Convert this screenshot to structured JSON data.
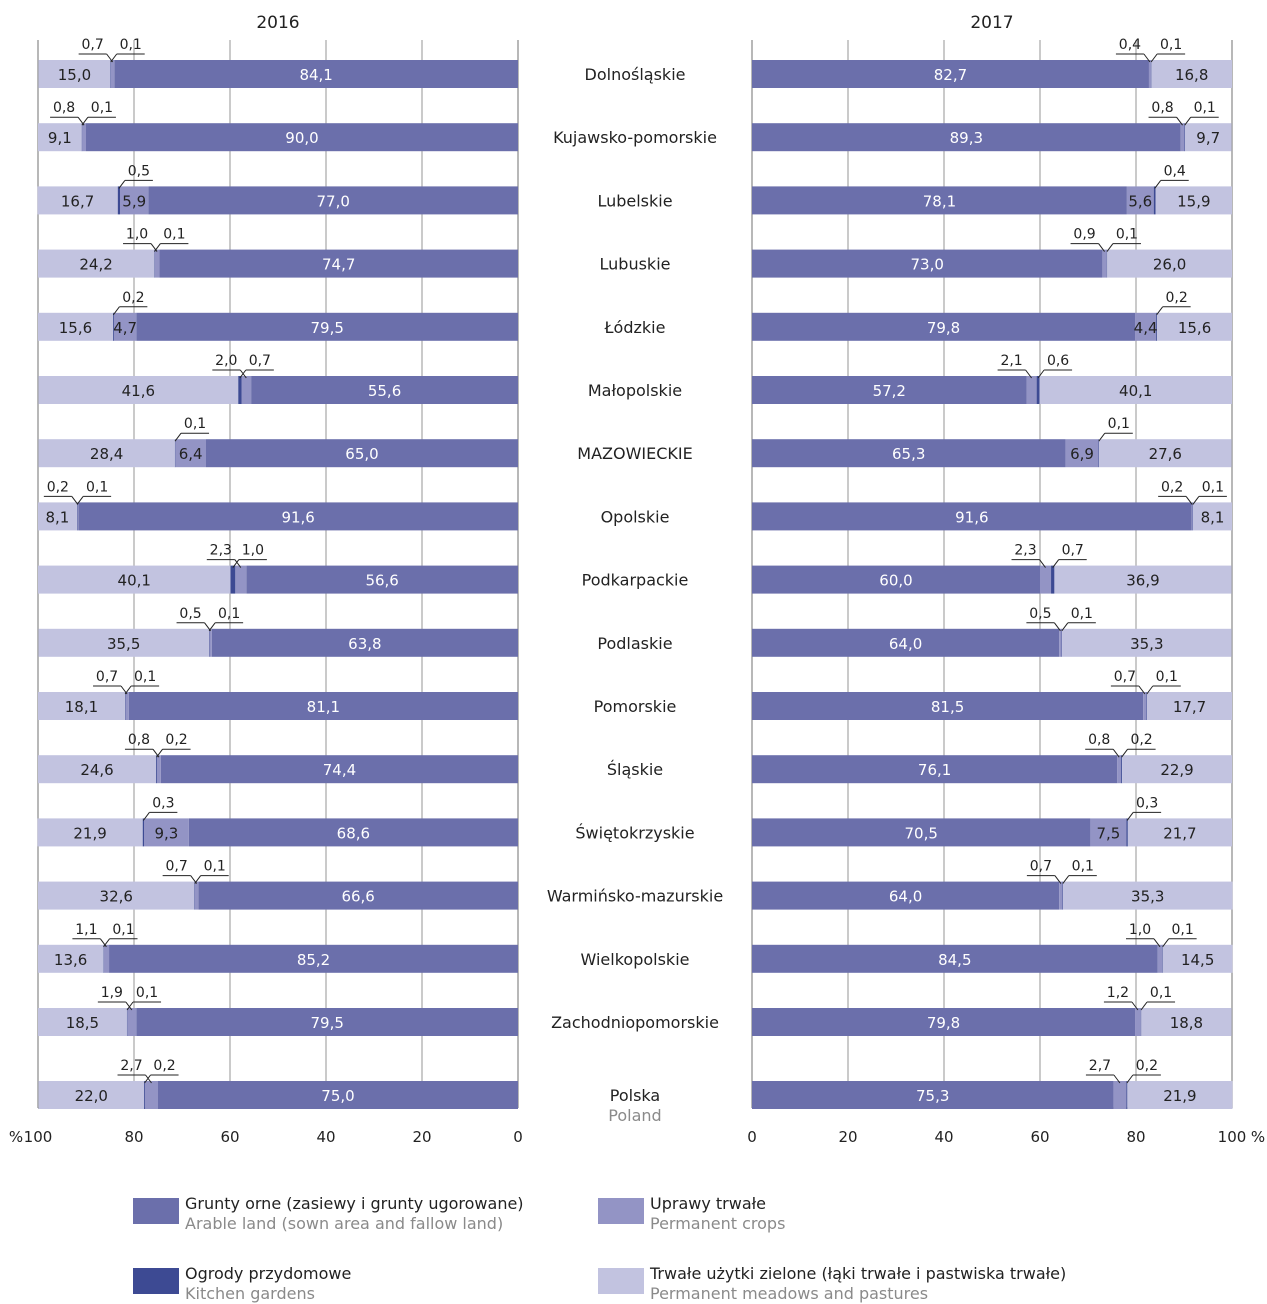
{
  "chart_data": {
    "type": "bar",
    "orientation": "horizontal-stacked-100",
    "panels": [
      {
        "title": "2016",
        "direction": "right-to-left",
        "ticks": [
          "100",
          "80",
          "60",
          "40",
          "20",
          "0"
        ],
        "unit": "%"
      },
      {
        "title": "2017",
        "direction": "left-to-right",
        "ticks": [
          "0",
          "20",
          "40",
          "60",
          "80",
          "100"
        ],
        "unit": "%"
      }
    ],
    "xlim": [
      0,
      100
    ],
    "grid": true,
    "legend_placement": "bottom",
    "categories": [
      "Dolnośląskie",
      "Kujawsko-pomorskie",
      "Lubelskie",
      "Lubuskie",
      "Łódzkie",
      "Małopolskie",
      "MAZOWIECKIE",
      "Opolskie",
      "Podkarpackie",
      "Podlaskie",
      "Pomorskie",
      "Śląskie",
      "Świętokrzyskie",
      "Warmińsko-mazurskie",
      "Wielkopolskie",
      "Zachodniopomorskie",
      "Polska"
    ],
    "category_subtitle": {
      "Polska": "Poland"
    },
    "series": [
      {
        "name": "Grunty orne (zasiewy i grunty ugorowane)",
        "name_en": "Arable land (sown area and fallow land)",
        "color": "#6b6fab",
        "values_2016": [
          84.1,
          90.0,
          77.0,
          74.7,
          79.5,
          55.6,
          65.0,
          91.6,
          56.6,
          63.8,
          81.1,
          74.4,
          68.6,
          66.6,
          85.2,
          79.5,
          75.0
        ],
        "values_2017": [
          82.7,
          89.3,
          78.1,
          73.0,
          79.8,
          57.2,
          65.3,
          91.6,
          60.0,
          64.0,
          81.5,
          76.1,
          70.5,
          64.0,
          84.5,
          79.8,
          75.3
        ]
      },
      {
        "name": "Uprawy trwałe",
        "name_en": "Permanent crops",
        "color": "#9394c5",
        "values_2016": [
          0.7,
          0.8,
          5.9,
          1.0,
          4.7,
          2.0,
          6.4,
          0.2,
          2.3,
          0.5,
          0.7,
          0.8,
          9.3,
          0.7,
          1.1,
          1.9,
          2.7
        ],
        "values_2017": [
          0.4,
          0.8,
          5.6,
          0.9,
          4.4,
          2.1,
          6.9,
          0.2,
          2.3,
          0.5,
          0.7,
          0.8,
          7.5,
          0.7,
          1.0,
          1.2,
          2.7
        ]
      },
      {
        "name": "Ogrody przydomowe",
        "name_en": "Kitchen gardens",
        "color": "#3d4a93",
        "values_2016": [
          0.1,
          0.1,
          0.5,
          0.1,
          0.2,
          0.7,
          0.1,
          0.1,
          1.0,
          0.1,
          0.1,
          0.2,
          0.3,
          0.1,
          0.1,
          0.1,
          0.2
        ],
        "values_2017": [
          0.1,
          0.1,
          0.4,
          0.1,
          0.2,
          0.6,
          0.1,
          0.1,
          0.7,
          0.1,
          0.1,
          0.2,
          0.3,
          0.1,
          0.1,
          0.1,
          0.2
        ]
      },
      {
        "name": "Trwałe użytki zielone (łąki trwałe i pastwiska trwałe)",
        "name_en": "Permanent meadows and pastures",
        "color": "#c2c3e0",
        "values_2016": [
          15.0,
          9.1,
          16.7,
          24.2,
          15.6,
          41.6,
          28.4,
          8.1,
          40.1,
          35.5,
          18.1,
          24.6,
          21.9,
          32.6,
          13.6,
          18.5,
          22.0
        ],
        "values_2017": [
          16.8,
          9.7,
          15.9,
          26.0,
          15.6,
          40.1,
          27.6,
          8.1,
          36.9,
          35.3,
          17.7,
          22.9,
          21.7,
          35.3,
          14.5,
          18.8,
          21.9
        ]
      }
    ],
    "callouts_2016": [
      [
        "0,7",
        "0,1"
      ],
      [
        "0,8",
        "0,1"
      ],
      [
        "",
        "0,5"
      ],
      [
        "1,0",
        "0,1"
      ],
      [
        "",
        "0,2"
      ],
      [
        "2,0",
        "0,7"
      ],
      [
        "",
        "0,1"
      ],
      [
        "0,2",
        "0,1"
      ],
      [
        "2,3",
        "1,0"
      ],
      [
        "0,5",
        "0,1"
      ],
      [
        "0,7",
        "0,1"
      ],
      [
        "0,8",
        "0,2"
      ],
      [
        "",
        "0,3"
      ],
      [
        "0,7",
        "0,1"
      ],
      [
        "1,1",
        "0,1"
      ],
      [
        "1,9",
        "0,1"
      ],
      [
        "2,7",
        "0,2"
      ]
    ],
    "callouts_2017": [
      [
        "0,4",
        "0,1"
      ],
      [
        "0,8",
        "0,1"
      ],
      [
        "",
        "0,4"
      ],
      [
        "0,9",
        "0,1"
      ],
      [
        "",
        "0,2"
      ],
      [
        "2,1",
        "0,6"
      ],
      [
        "",
        "0,1"
      ],
      [
        "0,2",
        "0,1"
      ],
      [
        "2,3",
        "0,7"
      ],
      [
        "0,5",
        "0,1"
      ],
      [
        "0,7",
        "0,1"
      ],
      [
        "0,8",
        "0,2"
      ],
      [
        "",
        "0,3"
      ],
      [
        "0,7",
        "0,1"
      ],
      [
        "1,0",
        "0,1"
      ],
      [
        "1,2",
        "0,1"
      ],
      [
        "2,7",
        "0,2"
      ]
    ],
    "inbar_labels_2016": [
      [
        "84,1",
        "",
        "",
        "15,0"
      ],
      [
        "90,0",
        "",
        "",
        "9,1"
      ],
      [
        "77,0",
        "5,9",
        "",
        "16,7"
      ],
      [
        "74,7",
        "",
        "",
        "24,2"
      ],
      [
        "79,5",
        "4,7",
        "",
        "15,6"
      ],
      [
        "55,6",
        "",
        "",
        "41,6"
      ],
      [
        "65,0",
        "6,4",
        "",
        "28,4"
      ],
      [
        "91,6",
        "",
        "",
        "8,1"
      ],
      [
        "56,6",
        "",
        "",
        "40,1"
      ],
      [
        "63,8",
        "",
        "",
        "35,5"
      ],
      [
        "81,1",
        "",
        "",
        "18,1"
      ],
      [
        "74,4",
        "",
        "",
        "24,6"
      ],
      [
        "68,6",
        "9,3",
        "",
        "21,9"
      ],
      [
        "66,6",
        "",
        "",
        "32,6"
      ],
      [
        "85,2",
        "",
        "",
        "13,6"
      ],
      [
        "79,5",
        "",
        "",
        "18,5"
      ],
      [
        "75,0",
        "",
        "",
        "22,0"
      ]
    ],
    "inbar_labels_2017": [
      [
        "82,7",
        "",
        "",
        "16,8"
      ],
      [
        "89,3",
        "",
        "",
        "9,7"
      ],
      [
        "78,1",
        "5,6",
        "",
        "15,9"
      ],
      [
        "73,0",
        "",
        "",
        "26,0"
      ],
      [
        "79,8",
        "4,4",
        "",
        "15,6"
      ],
      [
        "57,2",
        "",
        "",
        "40,1"
      ],
      [
        "65,3",
        "6,9",
        "",
        "27,6"
      ],
      [
        "91,6",
        "",
        "",
        "8,1"
      ],
      [
        "60,0",
        "",
        "",
        "36,9"
      ],
      [
        "64,0",
        "",
        "",
        "35,3"
      ],
      [
        "81,5",
        "",
        "",
        "17,7"
      ],
      [
        "76,1",
        "",
        "",
        "22,9"
      ],
      [
        "70,5",
        "7,5",
        "",
        "21,7"
      ],
      [
        "64,0",
        "",
        "",
        "35,3"
      ],
      [
        "84,5",
        "",
        "",
        "14,5"
      ],
      [
        "79,8",
        "",
        "",
        "18,8"
      ],
      [
        "75,3",
        "",
        "",
        "21,9"
      ]
    ]
  }
}
